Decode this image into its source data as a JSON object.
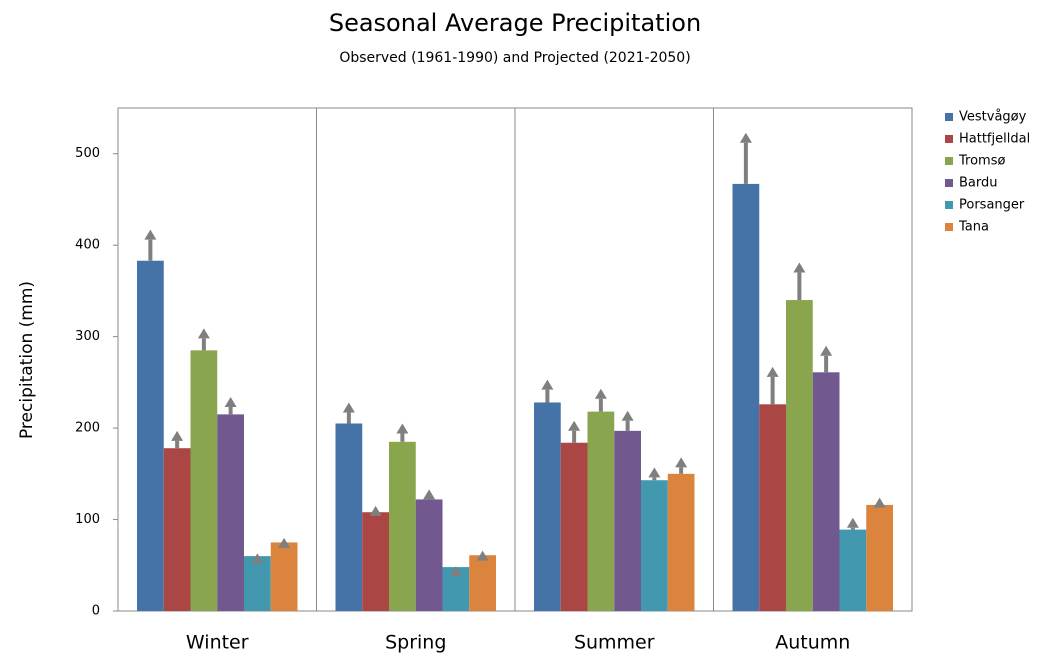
{
  "chart_data": {
    "type": "bar",
    "title": "Seasonal Average Precipitation",
    "subtitle": "Observed (1961-1990) and Projected (2021-2050)",
    "y_label": "Precipitation (mm)",
    "categories": [
      "Winter",
      "Spring",
      "Summer",
      "Autumn"
    ],
    "ylim": [
      0,
      550
    ],
    "yticks": [
      0,
      100,
      200,
      300,
      400,
      500
    ],
    "legend": "right",
    "series": [
      {
        "name": "Vestvågøy",
        "color": "#4572a7",
        "values": [
          383,
          205,
          228,
          467
        ],
        "projected": [
          417,
          228,
          253,
          523
        ]
      },
      {
        "name": "Hattfjelldal",
        "color": "#aa4643",
        "values": [
          178,
          108,
          184,
          226
        ],
        "projected": [
          197,
          115,
          208,
          267
        ]
      },
      {
        "name": "Tromsø",
        "color": "#89a54e",
        "values": [
          285,
          185,
          218,
          340
        ],
        "projected": [
          309,
          205,
          243,
          381
        ]
      },
      {
        "name": "Bardu",
        "color": "#71588f",
        "values": [
          215,
          122,
          197,
          261
        ],
        "projected": [
          234,
          133,
          219,
          290
        ]
      },
      {
        "name": "Porsanger",
        "color": "#4198af",
        "values": [
          60,
          48,
          143,
          89
        ],
        "projected": [
          63,
          49,
          157,
          102
        ]
      },
      {
        "name": "Tana",
        "color": "#db843d",
        "values": [
          75,
          61,
          150,
          116
        ],
        "projected": [
          80,
          66,
          168,
          124
        ]
      }
    ]
  }
}
